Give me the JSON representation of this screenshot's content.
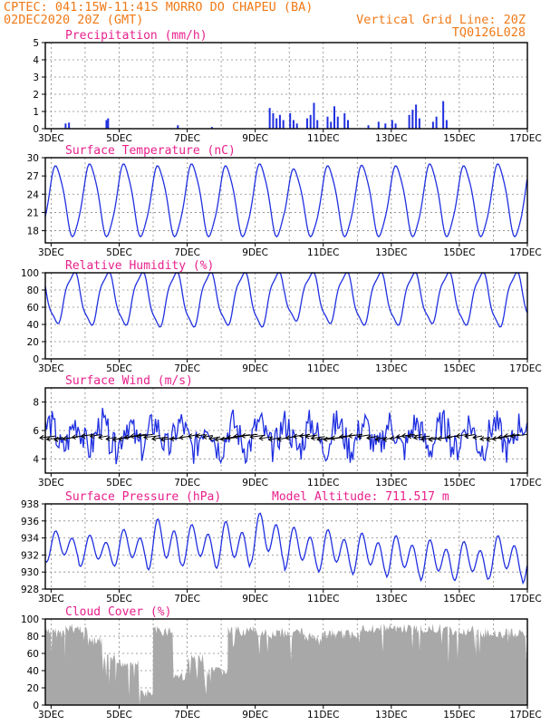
{
  "header": {
    "line1": "CPTEC:  041:15W-11:41S  MORRO DO CHAPEU (BA)",
    "line2": "02DEC2020 20Z (GMT)",
    "grid_note": "Vertical Grid Line: 20Z",
    "code": "TQ0126L028"
  },
  "x_tick_labels": [
    "3DEC",
    "5DEC",
    "7DEC",
    "9DEC",
    "11DEC",
    "13DEC",
    "15DEC",
    "17DEC"
  ],
  "colors": {
    "header": "#f07a18",
    "title": "#e8208c",
    "line": "#2030e0",
    "bar": "#2030e0",
    "cloud": "#a8a8a8",
    "arrow": "#000000"
  },
  "chart_data": [
    {
      "type": "bar",
      "title": "Precipitation (mm/h)",
      "ylim": [
        0,
        5
      ],
      "yticks": [
        0,
        1,
        2,
        3,
        4,
        5
      ],
      "x_start_day": 2.83,
      "x_end_day": 17.0,
      "points": [
        [
          3.4,
          0.3
        ],
        [
          3.5,
          0.35
        ],
        [
          4.6,
          0.5
        ],
        [
          4.65,
          0.6
        ],
        [
          6.7,
          0.2
        ],
        [
          7.7,
          0.1
        ],
        [
          9.4,
          1.2
        ],
        [
          9.5,
          0.9
        ],
        [
          9.6,
          0.6
        ],
        [
          9.7,
          0.8
        ],
        [
          9.8,
          0.5
        ],
        [
          10.0,
          0.9
        ],
        [
          10.1,
          0.5
        ],
        [
          10.2,
          0.3
        ],
        [
          10.5,
          0.6
        ],
        [
          10.6,
          0.8
        ],
        [
          10.7,
          1.5
        ],
        [
          10.8,
          0.5
        ],
        [
          11.1,
          0.7
        ],
        [
          11.2,
          0.4
        ],
        [
          11.3,
          1.3
        ],
        [
          11.4,
          0.7
        ],
        [
          11.6,
          0.9
        ],
        [
          11.7,
          0.5
        ],
        [
          12.3,
          0.2
        ],
        [
          12.6,
          0.4
        ],
        [
          12.8,
          0.3
        ],
        [
          13.0,
          0.5
        ],
        [
          13.1,
          0.3
        ],
        [
          13.5,
          0.8
        ],
        [
          13.6,
          1.1
        ],
        [
          13.7,
          1.4
        ],
        [
          13.8,
          0.6
        ],
        [
          14.2,
          0.4
        ],
        [
          14.3,
          0.7
        ],
        [
          14.5,
          1.6
        ],
        [
          14.6,
          0.5
        ]
      ]
    },
    {
      "type": "line",
      "title": "Surface Temperature (nC)",
      "ylim": [
        16,
        30
      ],
      "yticks": [
        18,
        21,
        24,
        27,
        30
      ],
      "min": 17.2,
      "max": [
        28.5,
        28.8,
        28.8,
        28.5,
        28.8,
        28.5,
        28.8,
        28.0,
        28.5,
        28.6,
        28.5,
        28.8,
        28.5,
        28.8,
        29.5
      ]
    },
    {
      "type": "line",
      "title": "Relative Humidity (%)",
      "ylim": [
        0,
        100
      ],
      "yticks": [
        0,
        20,
        40,
        60,
        80,
        100
      ],
      "min": [
        42,
        40,
        40,
        38,
        38,
        40,
        38,
        45,
        42,
        40,
        40,
        42,
        40,
        38,
        40
      ],
      "max": 100
    },
    {
      "type": "line",
      "title": "Surface Wind (m/s)",
      "ylim": [
        3,
        9
      ],
      "yticks": [
        4,
        6,
        8
      ],
      "mean": 5.6,
      "has_vectors": true
    },
    {
      "type": "line",
      "title": "Surface Pressure (hPa)",
      "annotation": "Model Altitude: 711.517 m",
      "ylim": [
        928,
        938
      ],
      "yticks": [
        928,
        930,
        932,
        934,
        936,
        938
      ],
      "peaks": [
        935.0,
        934.5,
        935.2,
        936.5,
        935.8,
        936.2,
        937.2,
        935.5,
        935.2,
        934.8,
        934.5,
        934.0,
        933.8,
        934.5,
        933.5
      ],
      "troughs": [
        931.0,
        930.5,
        930.5,
        930.0,
        930.5,
        930.2,
        930.8,
        930.0,
        929.8,
        929.5,
        929.2,
        928.8,
        928.8,
        929.0,
        928.5
      ]
    },
    {
      "type": "area",
      "title": "Cloud Cover (%)",
      "ylim": [
        0,
        100
      ],
      "yticks": [
        0,
        20,
        40,
        60,
        80,
        100
      ],
      "segments": [
        [
          2.83,
          3.4,
          90
        ],
        [
          3.4,
          4.1,
          95
        ],
        [
          4.1,
          4.5,
          80
        ],
        [
          4.5,
          4.9,
          60
        ],
        [
          4.9,
          5.6,
          55
        ],
        [
          5.6,
          6.0,
          20
        ],
        [
          6.0,
          6.6,
          92
        ],
        [
          6.6,
          7.0,
          40
        ],
        [
          7.0,
          7.5,
          60
        ],
        [
          7.5,
          8.2,
          45
        ],
        [
          8.2,
          9.0,
          92
        ],
        [
          9.0,
          10.4,
          90
        ],
        [
          10.4,
          11.0,
          85
        ],
        [
          11.0,
          12.0,
          88
        ],
        [
          12.0,
          14.5,
          95
        ],
        [
          14.5,
          15.5,
          92
        ],
        [
          15.5,
          17.0,
          90
        ]
      ]
    }
  ]
}
